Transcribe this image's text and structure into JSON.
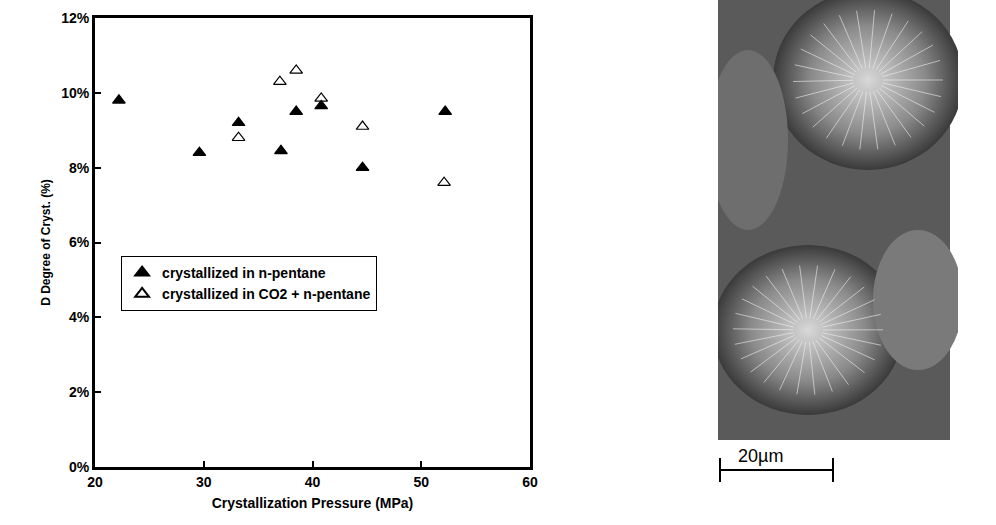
{
  "chart_data": {
    "type": "scatter",
    "xlabel": "Crystallization Pressure (MPa)",
    "ylabel": "D Degree of Cryst. (%)",
    "xlim": [
      20,
      60
    ],
    "xticks": [
      20,
      30,
      40,
      50,
      60
    ],
    "ylim": [
      0,
      12
    ],
    "yticks": [
      {
        "value": 0,
        "label": "0%"
      },
      {
        "value": 2,
        "label": "2%"
      },
      {
        "value": 4,
        "label": "4%"
      },
      {
        "value": 6,
        "label": "6%"
      },
      {
        "value": 8,
        "label": "8%"
      },
      {
        "value": 10,
        "label": "10%"
      },
      {
        "value": 12,
        "label": "12%"
      }
    ],
    "grid": false,
    "legend": "left",
    "series": [
      {
        "name": "crystallized in n-pentane",
        "color": "#000000",
        "marker": "triangle-up",
        "x": [
          22.2,
          29.6,
          33.2,
          37.1,
          38.5,
          40.8,
          44.6,
          52.2
        ],
        "values": [
          9.8,
          8.4,
          9.2,
          8.45,
          9.5,
          9.65,
          8.0,
          9.5
        ]
      },
      {
        "name": "crystallized in CO2 + n-pentane",
        "color": "#000000",
        "marker": "triangle-up-open",
        "x": [
          33.2,
          37.0,
          38.5,
          40.8,
          44.6,
          52.1
        ],
        "values": [
          8.8,
          10.3,
          10.6,
          9.85,
          9.1,
          7.6
        ]
      }
    ]
  },
  "micrograph": {
    "scale_bar_label": "20µm"
  }
}
